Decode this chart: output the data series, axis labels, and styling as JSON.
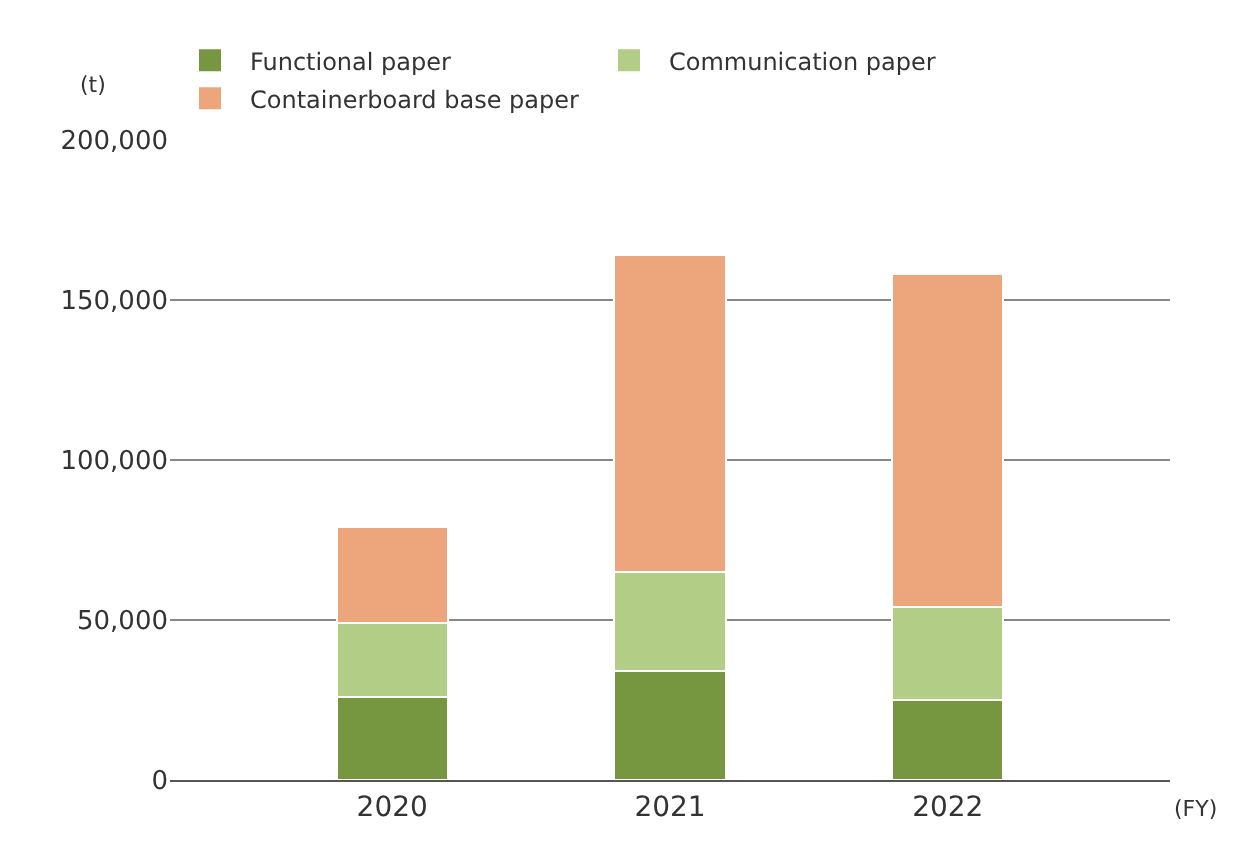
{
  "chart_data": {
    "type": "bar",
    "stacked": true,
    "categories": [
      "2020",
      "2021",
      "2022"
    ],
    "series": [
      {
        "name": "Functional paper",
        "color": "#76973f",
        "values": [
          26000,
          34000,
          25000
        ]
      },
      {
        "name": "Communication paper",
        "color": "#b2cd85",
        "values": [
          23000,
          31000,
          29000
        ]
      },
      {
        "name": "Containerboard base paper",
        "color": "#eda57b",
        "values": [
          30000,
          99000,
          104000
        ]
      }
    ],
    "ylabel": "(t)",
    "xlabel": "(FY)",
    "ylim": [
      0,
      200000
    ],
    "yticks": [
      0,
      {
        "value": 50000,
        "label": "50,000"
      },
      {
        "value": 100000,
        "label": "100,000"
      },
      {
        "value": 150000,
        "label": "150,000"
      },
      {
        "value": 200000,
        "label": "200,000"
      }
    ],
    "grid": "y",
    "legend": "top left"
  }
}
